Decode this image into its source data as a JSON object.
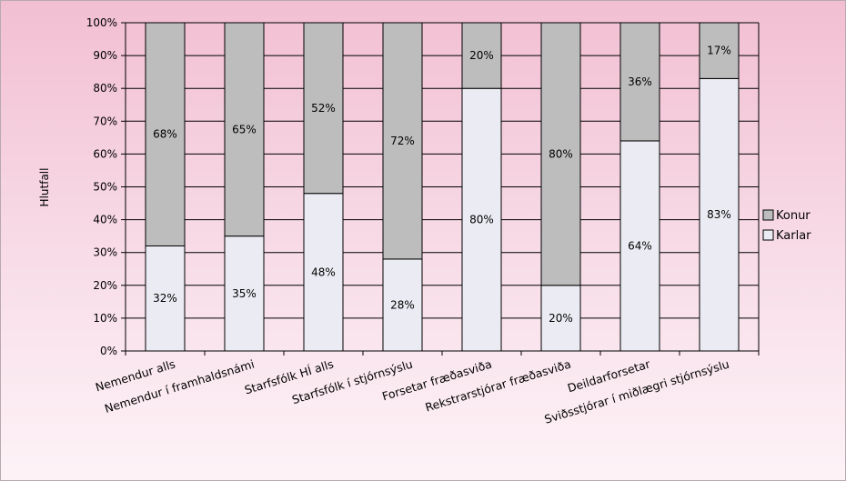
{
  "chart_data": {
    "type": "bar",
    "stacked": true,
    "ylabel": "Hlutfall",
    "ylim": [
      0,
      100
    ],
    "yticks": [
      "0%",
      "10%",
      "20%",
      "30%",
      "40%",
      "50%",
      "60%",
      "70%",
      "80%",
      "90%",
      "100%"
    ],
    "grid": true,
    "legend_position": "right",
    "categories": [
      "Nemendur alls",
      "Nemendur í framhaldsnámi",
      "Starfsfólk HÍ alls",
      "Starfsfólk í stjórnsýslu",
      "Forsetar fræðasviða",
      "Rekstrarstjórar fræðasviða",
      "Deildarforsetar",
      "Sviðsstjórar í miðlægri stjórnsýslu"
    ],
    "series": [
      {
        "name": "Karlar",
        "color": "#ebebf3",
        "values": [
          32,
          35,
          48,
          28,
          80,
          20,
          64,
          83
        ],
        "labels": [
          "32%",
          "35%",
          "48%",
          "28%",
          "80%",
          "20%",
          "64%",
          "83%"
        ]
      },
      {
        "name": "Konur",
        "color": "#bdbdbd",
        "values": [
          68,
          65,
          52,
          72,
          20,
          80,
          36,
          17
        ],
        "labels": [
          "68%",
          "65%",
          "52%",
          "72%",
          "20%",
          "80%",
          "36%",
          "17%"
        ]
      }
    ],
    "legend": [
      {
        "name": "Konur",
        "color": "#bdbdbd"
      },
      {
        "name": "Karlar",
        "color": "#ebebf3"
      }
    ]
  }
}
